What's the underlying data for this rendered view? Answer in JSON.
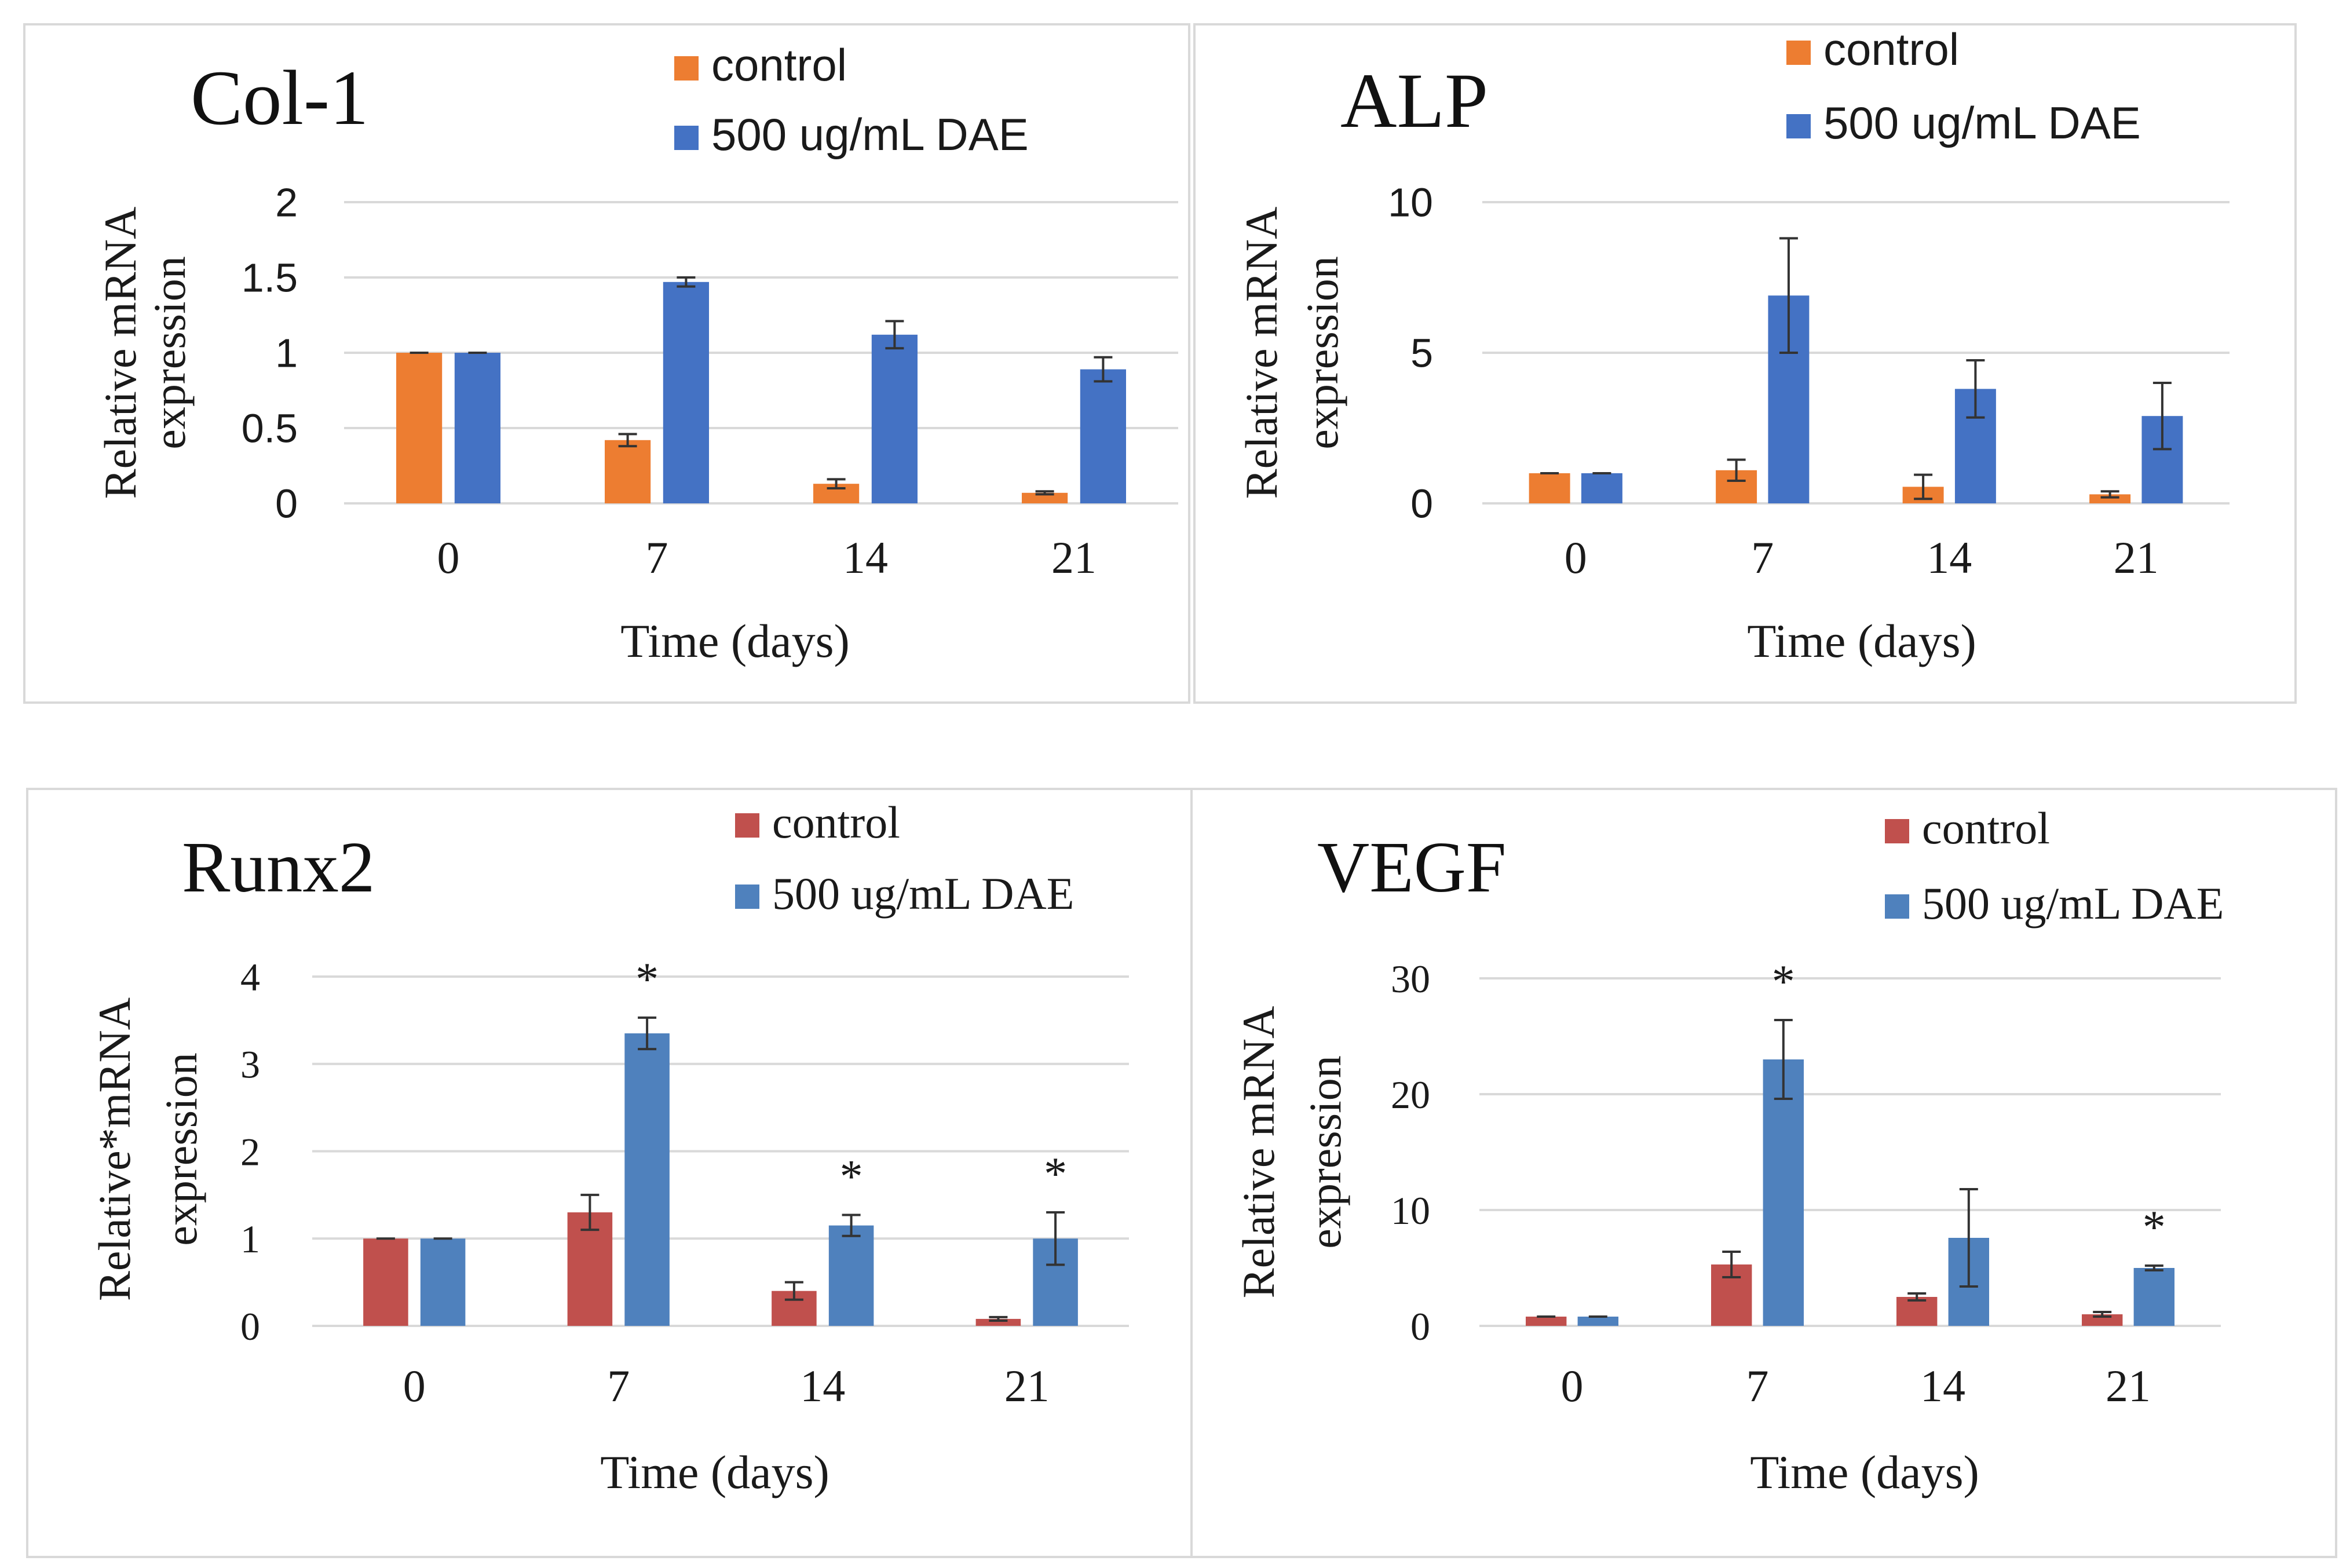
{
  "chart_data": [
    {
      "type": "bar",
      "title": "Col-1",
      "xlabel": "Time (days)",
      "ylabel_line1": "Relative mRNA",
      "ylabel_line2": "expression",
      "ylim": [
        0,
        2
      ],
      "yticks": [
        "0",
        "0.5",
        "1",
        "1.5",
        "2"
      ],
      "ytick_values": [
        0,
        0.5,
        1,
        1.5,
        2
      ],
      "categories": [
        "0",
        "7",
        "14",
        "21"
      ],
      "grid": true,
      "legend": "top-right",
      "font_style": "mixed",
      "series": [
        {
          "name": "control",
          "color": "#ed7d31",
          "values": [
            1.0,
            0.42,
            0.13,
            0.07
          ],
          "errors": [
            0.0,
            0.04,
            0.03,
            0.01
          ]
        },
        {
          "name": "500 ug/mL DAE",
          "color": "#4472c4",
          "values": [
            1.0,
            1.47,
            1.12,
            0.89
          ],
          "errors": [
            0.0,
            0.03,
            0.09,
            0.08
          ]
        }
      ],
      "annotations": []
    },
    {
      "type": "bar",
      "title": "ALP",
      "xlabel": "Time (days)",
      "ylabel_line1": "Relative mRNA",
      "ylabel_line2": "expression",
      "ylim": [
        0,
        10
      ],
      "yticks": [
        "0",
        "5",
        "10"
      ],
      "ytick_values": [
        0,
        5,
        10
      ],
      "categories": [
        "0",
        "7",
        "14",
        "21"
      ],
      "grid": true,
      "legend": "top-right",
      "font_style": "mixed",
      "series": [
        {
          "name": "control",
          "color": "#ed7d31",
          "values": [
            1.0,
            1.1,
            0.55,
            0.3
          ],
          "errors": [
            0.0,
            0.35,
            0.4,
            0.1
          ]
        },
        {
          "name": "500 ug/mL  DAE",
          "color": "#4472c4",
          "values": [
            1.0,
            6.9,
            3.8,
            2.9
          ],
          "errors": [
            0.0,
            1.9,
            0.95,
            1.1
          ]
        }
      ],
      "annotations": []
    },
    {
      "type": "bar",
      "title": "Runx2",
      "xlabel": "Time (days)",
      "ylabel_line1": "Relative*mRNA",
      "ylabel_line2": "expression",
      "ylim": [
        0,
        4
      ],
      "yticks": [
        "0",
        "1",
        "2",
        "3",
        "4"
      ],
      "ytick_values": [
        0,
        1,
        2,
        3,
        4
      ],
      "categories": [
        "0",
        "7",
        "14",
        "21"
      ],
      "grid": true,
      "legend": "top-right",
      "font_style": "serif",
      "series": [
        {
          "name": "control",
          "color": "#c0504d",
          "values": [
            1.0,
            1.3,
            0.4,
            0.08
          ],
          "errors": [
            0.0,
            0.2,
            0.1,
            0.02
          ]
        },
        {
          "name": "500 ug/mL DAE",
          "color": "#4f81bd",
          "values": [
            1.0,
            3.35,
            1.15,
            1.0
          ],
          "errors": [
            0.0,
            0.18,
            0.12,
            0.3
          ]
        }
      ],
      "annotations": [
        {
          "text": "*",
          "category": "7",
          "series": 1
        },
        {
          "text": "*",
          "category": "14",
          "series": 1
        },
        {
          "text": "*",
          "category": "21",
          "series": 1
        }
      ]
    },
    {
      "type": "bar",
      "title": "VEGF",
      "xlabel": "Time (days)",
      "ylabel_line1": "Relative mRNA",
      "ylabel_line2": "expression",
      "ylim": [
        0,
        30
      ],
      "yticks": [
        "0",
        "10",
        "20",
        "30"
      ],
      "ytick_values": [
        0,
        10,
        20,
        30
      ],
      "categories": [
        "0",
        "7",
        "14",
        "21"
      ],
      "grid": true,
      "legend": "top-right",
      "font_style": "serif",
      "series": [
        {
          "name": "control",
          "color": "#c0504d",
          "values": [
            0.8,
            5.3,
            2.5,
            1.0
          ],
          "errors": [
            0.0,
            1.1,
            0.3,
            0.2
          ]
        },
        {
          "name": "500 ug/mL DAE",
          "color": "#4f81bd",
          "values": [
            0.8,
            23.0,
            7.6,
            5.0
          ],
          "errors": [
            0.0,
            3.4,
            4.2,
            0.2
          ]
        }
      ],
      "annotations": [
        {
          "text": "*",
          "category": "7",
          "series": 1
        },
        {
          "text": "*",
          "category": "21",
          "series": 1
        }
      ]
    }
  ]
}
